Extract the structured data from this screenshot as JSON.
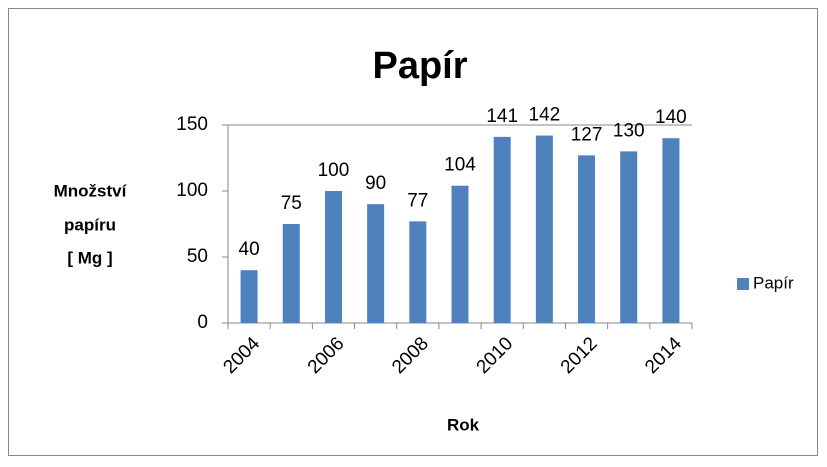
{
  "chart_data": {
    "type": "bar",
    "title": "Papír",
    "ylabel": [
      "Množství",
      "papíru",
      "[ Mg ]"
    ],
    "xlabel": "Rok",
    "categories": [
      "2004",
      null,
      "2006",
      null,
      "2008",
      null,
      "2010",
      null,
      "2012",
      null,
      "2014"
    ],
    "series": [
      {
        "name": "Papír",
        "color": "#4f81bd",
        "values": [
          40,
          75,
          100,
          90,
          77,
          104,
          141,
          142,
          127,
          130,
          140
        ]
      }
    ],
    "ylim": [
      0,
      150
    ],
    "yticks": [
      0,
      50,
      100,
      150
    ],
    "grid": false,
    "legend": "right"
  }
}
